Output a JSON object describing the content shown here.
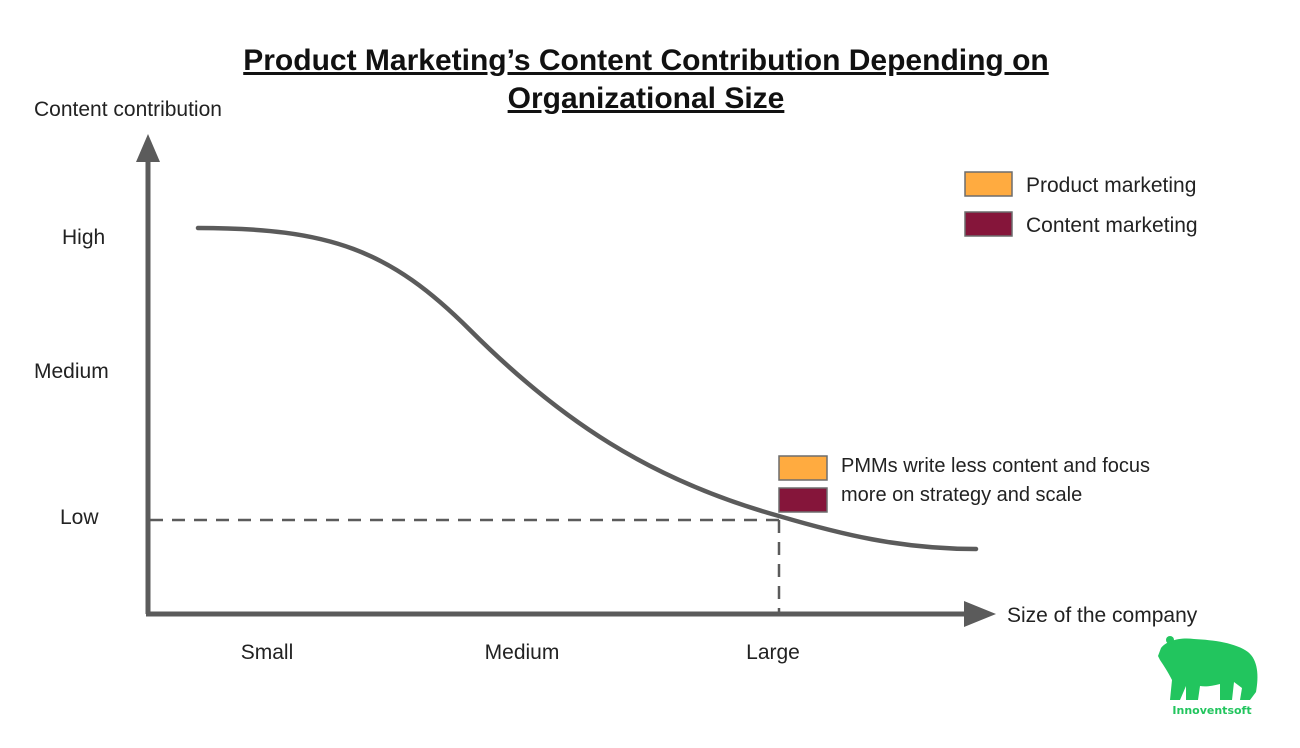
{
  "chart_data": {
    "type": "line",
    "title": "Product Marketing’s Content Contribution Depending on Organizational Size",
    "title_lines": [
      "Product Marketing’s Content Contribution Depending on",
      "Organizational Size"
    ],
    "ylabel": "Content contribution",
    "xlabel": "Size of the company",
    "y_tick_labels": [
      "High",
      "Medium",
      "Low"
    ],
    "x_tick_labels": [
      "Small",
      "Medium",
      "Large"
    ],
    "legend": [
      {
        "label": "Product marketing",
        "color": "#FFAB40"
      },
      {
        "label": "Content marketing",
        "color": "#85153A"
      }
    ],
    "annotation": {
      "lines": [
        "PMMs write less content and focus",
        "more on strategy and scale"
      ],
      "at_x": "Large",
      "at_y": "Low",
      "swatch_colors": [
        "#FFAB40",
        "#85153A"
      ]
    },
    "curve_color": "#5b5b5b",
    "grid": false
  },
  "brand": {
    "name": "Innoventsoft",
    "logo_icon": "bear-icon",
    "color": "#22C55E"
  }
}
